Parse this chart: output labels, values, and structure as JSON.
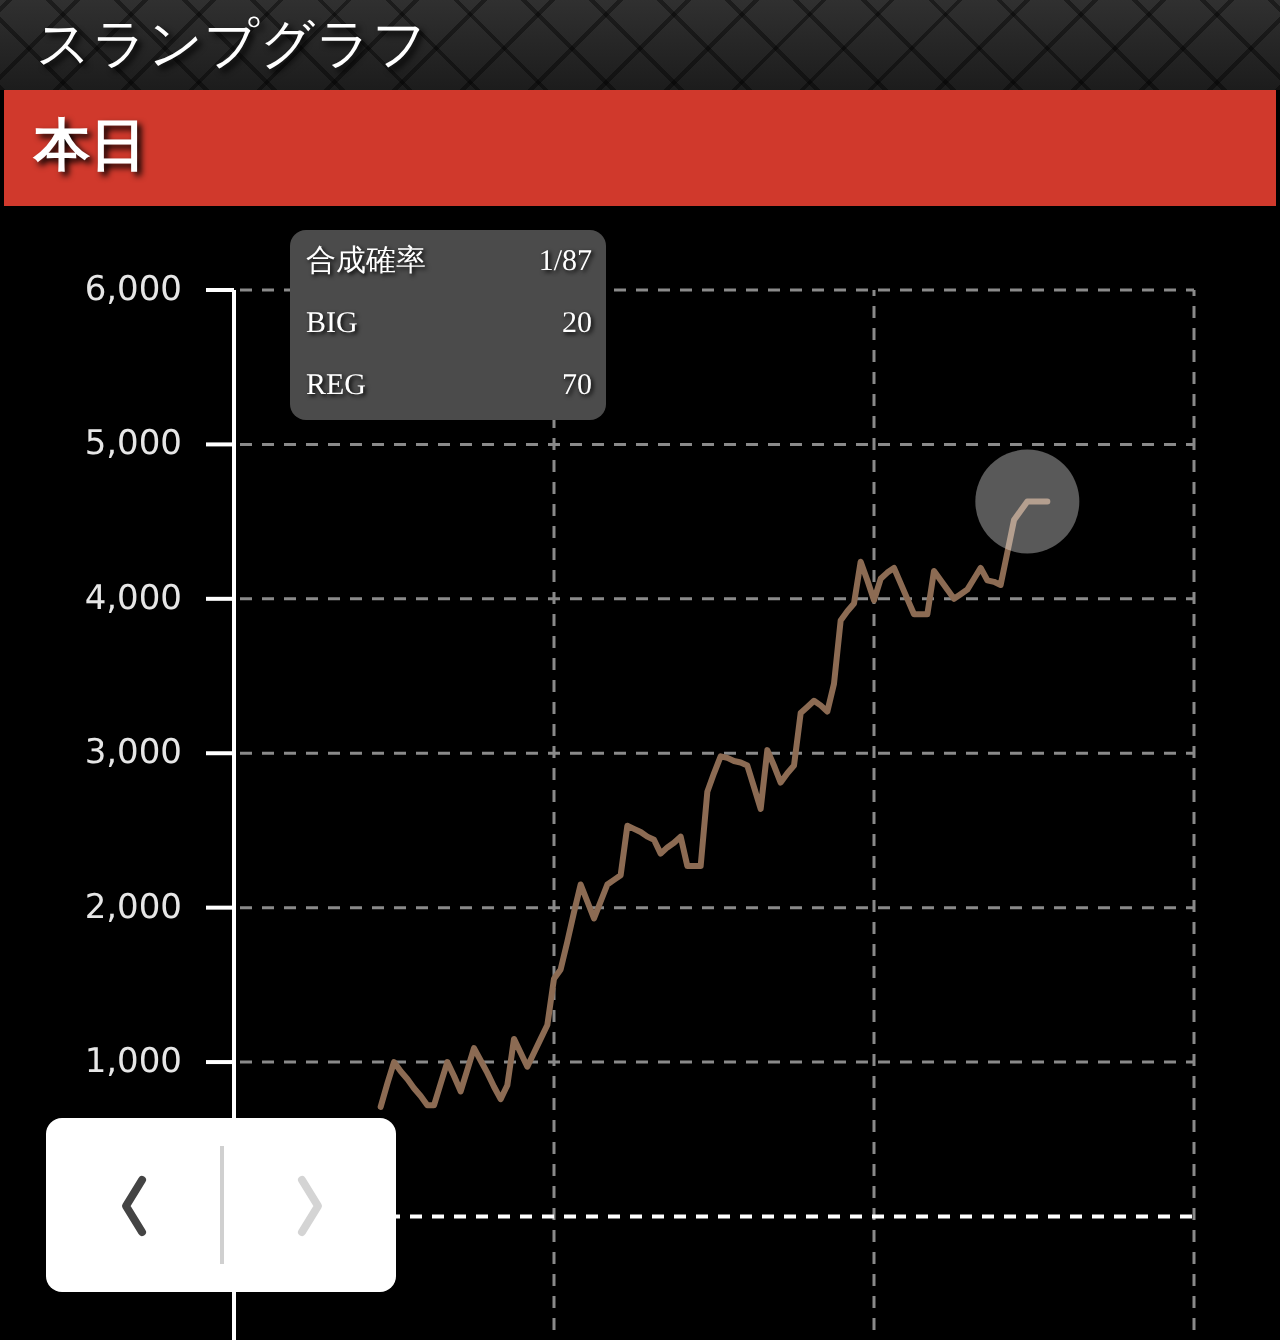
{
  "chart_data": {
    "type": "line",
    "title": "スランプグラフ",
    "subtitle": "本日",
    "categories": [
      null,
      null,
      null,
      null,
      null,
      null,
      null,
      null,
      null,
      null,
      null,
      null,
      null,
      null,
      null,
      null,
      null,
      null,
      null,
      null,
      null,
      null,
      null,
      null,
      null,
      null,
      null,
      null,
      null,
      null,
      null,
      null,
      null,
      null,
      null,
      null,
      null,
      null,
      null,
      null,
      null,
      null,
      null,
      null,
      null,
      null,
      null,
      null,
      null,
      null,
      null,
      null,
      null,
      null,
      null,
      null,
      null,
      null,
      null,
      null,
      null,
      null,
      null,
      null,
      null,
      null,
      null,
      null,
      null,
      null,
      null,
      null,
      null,
      null,
      null,
      null,
      null,
      null,
      null,
      null,
      null,
      null,
      null,
      null,
      null,
      null,
      null,
      null,
      null,
      null,
      null,
      null,
      null,
      null,
      null,
      null,
      null,
      null,
      null,
      null,
      null,
      null,
      null,
      null,
      null,
      null,
      null,
      null,
      null,
      null,
      null,
      null,
      null,
      null,
      null,
      null,
      null,
      null,
      null,
      null,
      null,
      null,
      null,
      null,
      null,
      null,
      null,
      null,
      null,
      null,
      null,
      null,
      null,
      null,
      null,
      null,
      null,
      null,
      null,
      null,
      null,
      null,
      null,
      null,
      null
    ],
    "series": [
      {
        "type": "line",
        "color": "#8c6b53",
        "values": [
          null,
          null,
          null,
          null,
          null,
          null,
          null,
          null,
          null,
          null,
          null,
          null,
          null,
          null,
          null,
          null,
          null,
          null,
          null,
          null,
          null,
          null,
          710,
          860,
          1000,
          940,
          890,
          830,
          780,
          720,
          720,
          860,
          1000,
          910,
          810,
          950,
          1090,
          1010,
          930,
          840,
          760,
          850,
          1150,
          1060,
          970,
          1060,
          1150,
          1240,
          1540,
          1600,
          1780,
          1970,
          2150,
          2040,
          1930,
          2040,
          2150,
          2180,
          2210,
          2530,
          2510,
          2490,
          2460,
          2440,
          2350,
          2390,
          2420,
          2460,
          2270,
          2270,
          2270,
          2750,
          2870,
          2980,
          2970,
          2950,
          2940,
          2920,
          2780,
          2640,
          3020,
          2920,
          2810,
          2870,
          2920,
          3260,
          3300,
          3340,
          3310,
          3270,
          3450,
          3860,
          3920,
          3970,
          4240,
          4120,
          3990,
          4130,
          4170,
          4200,
          4100,
          4000,
          3900,
          3900,
          3900,
          4180,
          4120,
          4060,
          4000,
          4030,
          4060,
          4130,
          4200,
          4120,
          4110,
          4090,
          4300,
          4510,
          4570,
          4630,
          4630,
          4630,
          4630,
          null,
          null,
          null,
          null,
          null,
          null,
          null,
          null,
          null,
          null,
          null,
          null,
          null,
          null,
          null,
          null,
          null,
          null,
          null,
          null,
          null,
          null
        ]
      },
      {
        "type": "scatter",
        "color": "#595959",
        "marker": "circle",
        "values": [
          null,
          null,
          null,
          null,
          null,
          null,
          null,
          null,
          null,
          null,
          null,
          null,
          null,
          null,
          null,
          null,
          null,
          null,
          null,
          null,
          null,
          null,
          null,
          null,
          null,
          null,
          null,
          null,
          null,
          null,
          null,
          null,
          null,
          null,
          null,
          null,
          null,
          null,
          null,
          null,
          null,
          null,
          null,
          null,
          null,
          null,
          null,
          null,
          null,
          null,
          null,
          null,
          null,
          null,
          null,
          null,
          null,
          null,
          null,
          null,
          null,
          null,
          null,
          null,
          null,
          null,
          null,
          null,
          null,
          null,
          null,
          null,
          null,
          null,
          null,
          null,
          null,
          null,
          null,
          null,
          null,
          null,
          null,
          null,
          null,
          null,
          null,
          null,
          null,
          null,
          null,
          null,
          null,
          null,
          null,
          null,
          null,
          null,
          null,
          null,
          null,
          null,
          null,
          null,
          null,
          null,
          null,
          null,
          null,
          null,
          null,
          null,
          null,
          null,
          null,
          null,
          null,
          null,
          null,
          4630,
          null,
          null,
          null,
          null,
          null,
          null,
          null,
          null,
          null,
          null,
          null,
          null,
          null,
          null,
          null,
          null,
          null,
          null,
          null,
          null,
          null,
          null,
          null,
          null,
          null
        ]
      }
    ],
    "ylim": [
      -800,
      6000
    ],
    "yticks": [
      {
        "value": 1000,
        "label": "1,000"
      },
      {
        "value": 2000,
        "label": "2,000"
      },
      {
        "value": 3000,
        "label": "3,000"
      },
      {
        "value": 4000,
        "label": "4,000"
      },
      {
        "value": 5000,
        "label": "5,000"
      },
      {
        "value": 6000,
        "label": "6,000"
      }
    ],
    "tick_labels": "y",
    "grid": true,
    "ref_lines": [
      {
        "axis": "y",
        "value": 0,
        "color": "#ffffff",
        "line_style": "dashed"
      }
    ],
    "annotations": [
      "合成確率",
      "1/87",
      "BIG",
      "20",
      "REG",
      "70"
    ]
  }
}
